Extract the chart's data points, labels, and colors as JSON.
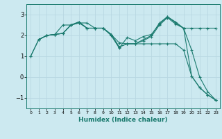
{
  "xlabel": "Humidex (Indice chaleur)",
  "background_color": "#cce9f0",
  "grid_color": "#b8d8e2",
  "line_color": "#1a7a6e",
  "xlim": [
    -0.5,
    23.5
  ],
  "ylim": [
    -1.5,
    3.5
  ],
  "yticks": [
    -1,
    0,
    1,
    2,
    3
  ],
  "xticks": [
    0,
    1,
    2,
    3,
    4,
    5,
    6,
    7,
    8,
    9,
    10,
    11,
    12,
    13,
    14,
    15,
    16,
    17,
    18,
    19,
    20,
    21,
    22,
    23
  ],
  "series": [
    {
      "x": [
        0,
        1,
        2,
        3,
        4,
        5,
        6,
        7,
        8,
        9,
        10,
        11,
        12,
        13,
        14,
        15,
        16,
        17,
        18,
        19,
        20,
        21,
        22,
        23
      ],
      "y": [
        1.0,
        1.8,
        2.0,
        2.05,
        2.1,
        2.5,
        2.6,
        2.6,
        2.35,
        2.35,
        2.05,
        1.65,
        1.6,
        1.6,
        1.6,
        1.6,
        1.6,
        1.6,
        1.6,
        1.3,
        0.05,
        -0.5,
        -0.85,
        -1.1
      ]
    },
    {
      "x": [
        0,
        1,
        2,
        3,
        4,
        5,
        6,
        7,
        8,
        9,
        10,
        11,
        12,
        13,
        14,
        15,
        16,
        17,
        18,
        19,
        20,
        21,
        22,
        23
      ],
      "y": [
        1.0,
        1.8,
        2.0,
        2.05,
        2.5,
        2.5,
        2.6,
        2.35,
        2.35,
        2.35,
        2.0,
        1.4,
        1.9,
        1.75,
        1.95,
        2.05,
        2.55,
        2.9,
        2.6,
        2.35,
        0.05,
        -0.5,
        -0.85,
        -1.1
      ]
    },
    {
      "x": [
        1,
        2,
        3,
        4,
        5,
        6,
        7,
        8,
        9,
        10,
        11,
        12,
        13,
        14,
        15,
        16,
        17,
        18,
        19,
        20,
        21,
        22,
        23
      ],
      "y": [
        1.8,
        2.0,
        2.05,
        2.1,
        2.5,
        2.65,
        2.35,
        2.35,
        2.35,
        2.05,
        1.45,
        1.6,
        1.6,
        1.8,
        2.0,
        2.6,
        2.9,
        2.65,
        2.35,
        2.35,
        2.35,
        2.35,
        2.35
      ]
    },
    {
      "x": [
        1,
        2,
        3,
        4,
        5,
        6,
        7,
        8,
        9,
        10,
        11,
        12,
        13,
        14,
        15,
        16,
        17,
        18,
        19,
        20,
        21,
        22,
        23
      ],
      "y": [
        1.8,
        2.0,
        2.05,
        2.1,
        2.5,
        2.65,
        2.35,
        2.35,
        2.35,
        2.05,
        1.45,
        1.6,
        1.6,
        1.75,
        1.95,
        2.5,
        2.85,
        2.55,
        2.35,
        1.3,
        0.0,
        -0.7,
        -1.1
      ]
    }
  ]
}
